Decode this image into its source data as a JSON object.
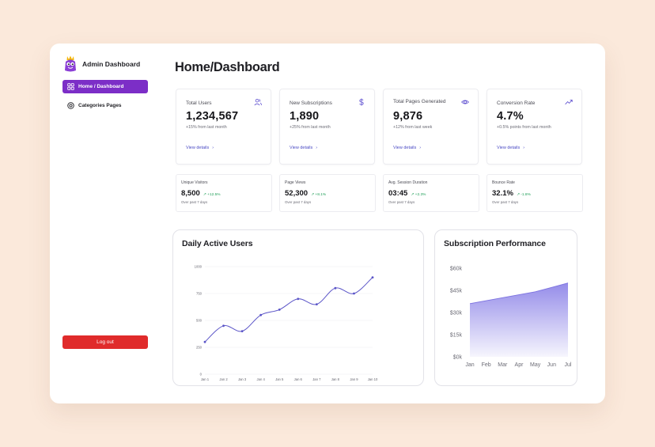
{
  "app": {
    "title": "Admin Dashboard"
  },
  "sidebar": {
    "items": [
      {
        "label": "Home / Dashboard",
        "icon": "grid-icon",
        "active": true
      },
      {
        "label": "Categories Pages",
        "icon": "circle-target-icon",
        "active": false
      }
    ],
    "logout_label": "Log out"
  },
  "page": {
    "title": "Home/Dashboard"
  },
  "kpis": [
    {
      "title": "Total Users",
      "value": "1,234,567",
      "sub": "+15% from last month",
      "link": "View details",
      "icon": "users-icon"
    },
    {
      "title": "New Subscriptions",
      "value": "1,890",
      "sub": "+25% from last month",
      "link": "View details",
      "icon": "dollar-icon"
    },
    {
      "title": "Total Pages Generated",
      "value": "9,876",
      "sub": "+12% from last week",
      "link": "View details",
      "icon": "eye-icon"
    },
    {
      "title": "Conversion Rate",
      "value": "4.7%",
      "sub": "+0.5% points from last month",
      "link": "View details",
      "icon": "trending-up-icon"
    }
  ],
  "stats": [
    {
      "title": "Unique Visitors",
      "value": "8,500",
      "delta": "+12.5%",
      "sub": "Over past 7 days"
    },
    {
      "title": "Page Views",
      "value": "52,300",
      "delta": "+8.1%",
      "sub": "Over past 7 days"
    },
    {
      "title": "Avg. Session Duration",
      "value": "03:45",
      "delta": "+2.3%",
      "sub": "Over past 7 days"
    },
    {
      "title": "Bounce Rate",
      "value": "32.1%",
      "delta": "-1.8%",
      "sub": "Over past 7 days"
    }
  ],
  "colors": {
    "accent": "#7c2ec7",
    "danger": "#e02b2b",
    "line": "#5b55c8",
    "area": "#8f86e8",
    "positive": "#22a05a"
  },
  "chart_data": [
    {
      "type": "line",
      "title": "Daily Active Users",
      "x": [
        "Jan 1",
        "Jan 2",
        "Jan 3",
        "Jan 4",
        "Jan 5",
        "Jan 6",
        "Jan 7",
        "Jan 8",
        "Jan 9",
        "Jan 10"
      ],
      "values": [
        300,
        450,
        400,
        550,
        600,
        700,
        650,
        800,
        750,
        900
      ],
      "yticks": [
        "0",
        "250",
        "500",
        "750",
        "1000"
      ],
      "ylim": [
        0,
        1000
      ],
      "grid": true
    },
    {
      "type": "area",
      "title": "Subscription Performance",
      "x": [
        "Jan",
        "Feb",
        "Mar",
        "Apr",
        "May",
        "Jun",
        "Jul"
      ],
      "values": [
        36000,
        38000,
        40000,
        42000,
        44000,
        47000,
        50000
      ],
      "yticks": [
        "$0k",
        "$15k",
        "$30k",
        "$45k",
        "$60k"
      ],
      "ylim": [
        0,
        60000
      ],
      "grid": false
    }
  ]
}
